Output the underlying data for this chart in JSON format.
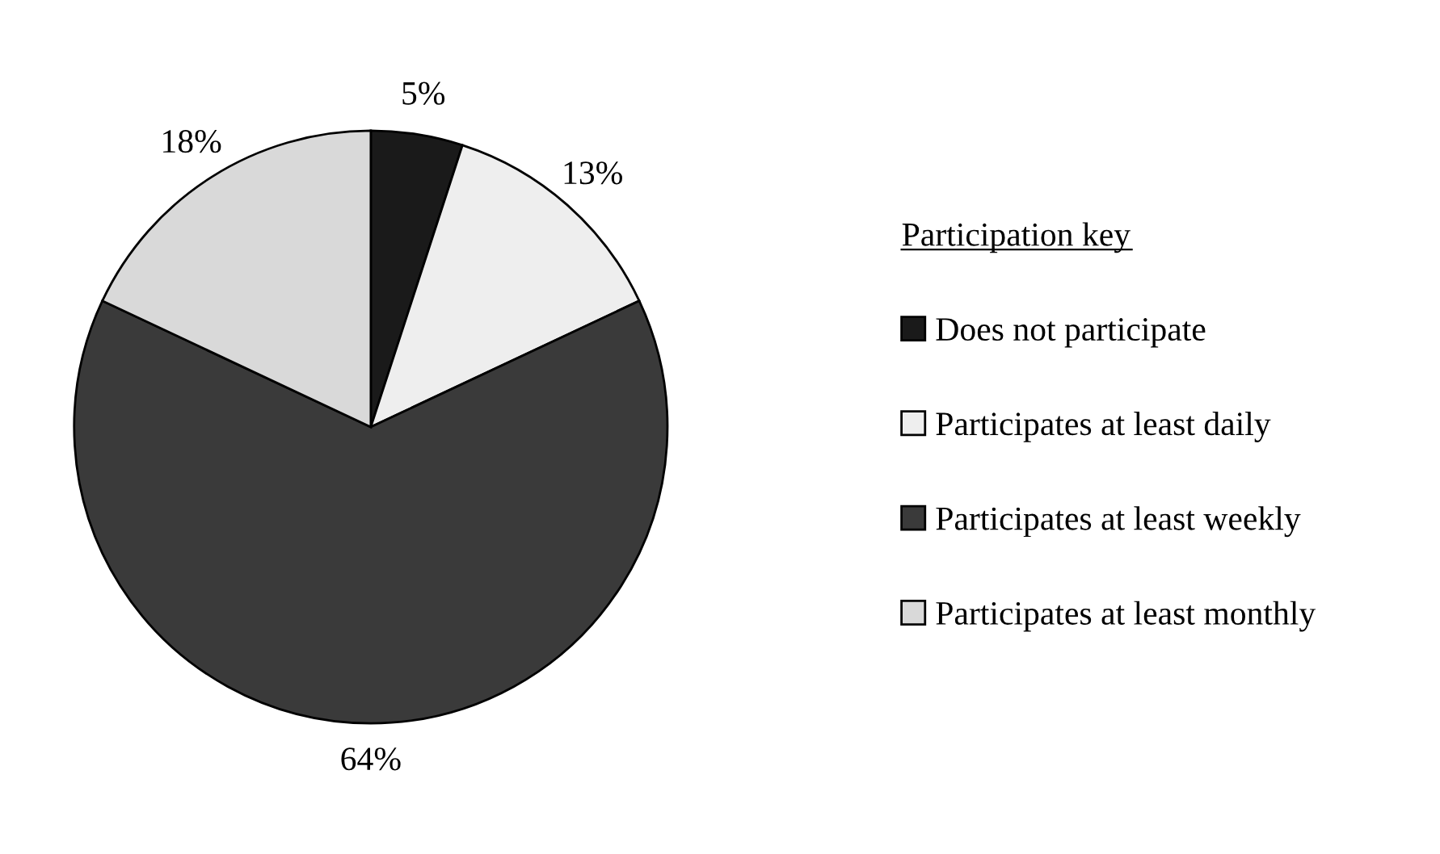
{
  "chart_data": {
    "type": "pie",
    "categories": [
      "Does not participate",
      "Participates at least daily",
      "Participates at least weekly",
      "Participates at least monthly"
    ],
    "values": [
      5,
      13,
      64,
      18
    ],
    "colors": [
      "#1a1a1a",
      "#eeeeee",
      "#3a3a3a",
      "#d9d9d9"
    ],
    "value_labels": [
      "5%",
      "13%",
      "64%",
      "18%"
    ],
    "legend_title": "Participation key",
    "legend": "right"
  }
}
